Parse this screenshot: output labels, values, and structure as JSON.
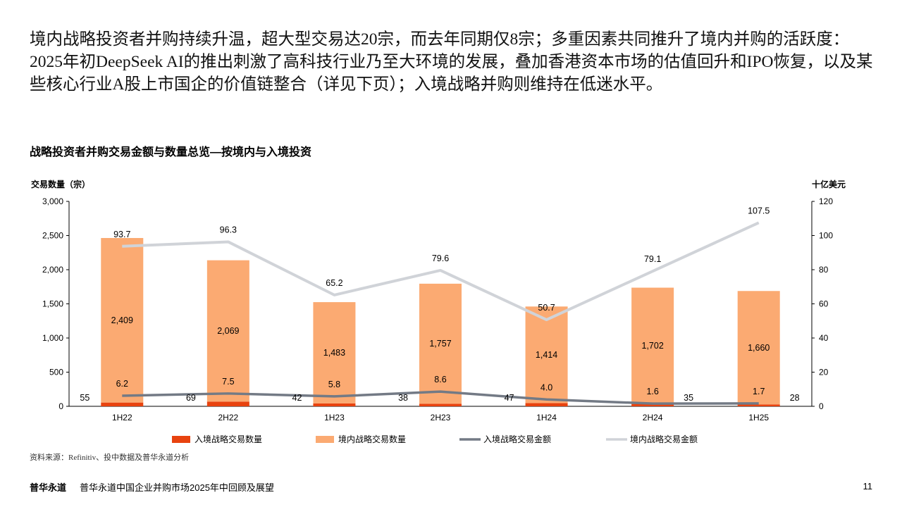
{
  "headline": "境内战略投资者并购持续升温，超大型交易达20宗，而去年同期仅8宗；多重因素共同推升了境内并购的活跃度：2025年初DeepSeek AI的推出刺激了高科技行业乃至大环境的发展，叠加香港资本市场的估值回升和IPO恢复，以及某些核心行业A股上市国企的价值链整合（详见下页）；入境战略并购则维持在低迷水平。",
  "chart_data": {
    "type": "bar",
    "title": "战略投资者并购交易金额与数量总览—按境内与入境投资",
    "ylabel": "交易数量（宗）",
    "y2label": "十亿美元",
    "ylim": [
      0,
      3000
    ],
    "y2lim": [
      0,
      120
    ],
    "yticks": [
      "3,000",
      "2,500",
      "2,000",
      "1,500",
      "1,000",
      "500",
      "0"
    ],
    "y2ticks": [
      "120",
      "100",
      "80",
      "60",
      "40",
      "20",
      "0"
    ],
    "categories": [
      "1H22",
      "2H22",
      "1H23",
      "2H23",
      "1H24",
      "2H24",
      "1H25"
    ],
    "series": [
      {
        "name": "入境战略交易数量",
        "kind": "bar",
        "axis": "left",
        "color": "#e8430f",
        "values": [
          55,
          69,
          42,
          38,
          47,
          35,
          28
        ],
        "labels": [
          "55",
          "69",
          "42",
          "38",
          "47",
          "35",
          "28"
        ]
      },
      {
        "name": "境内战略交易数量",
        "kind": "bar",
        "axis": "left",
        "color": "#fbaa72",
        "values": [
          2409,
          2069,
          1483,
          1757,
          1414,
          1702,
          1660
        ],
        "labels": [
          "2,409",
          "2,069",
          "1,483",
          "1,757",
          "1,414",
          "1,702",
          "1,660"
        ]
      },
      {
        "name": "入境战略交易金额",
        "kind": "line",
        "axis": "right",
        "color": "#737a85",
        "values": [
          6.2,
          7.5,
          5.8,
          8.6,
          4.0,
          1.6,
          1.7
        ],
        "labels": [
          "6.2",
          "7.5",
          "5.8",
          "8.6",
          "4.0",
          "1.6",
          "1.7"
        ]
      },
      {
        "name": "境内战略交易金额",
        "kind": "line",
        "axis": "right",
        "color": "#d0d3d8",
        "values": [
          93.7,
          96.3,
          65.2,
          79.6,
          50.7,
          79.1,
          107.5
        ],
        "labels": [
          "93.7",
          "96.3",
          "65.2",
          "79.6",
          "50.7",
          "79.1",
          "107.5"
        ]
      }
    ],
    "legend": "bottom",
    "grid": false
  },
  "source": "资料来源：Refinitiv、投中数据及普华永道分析",
  "footer": {
    "brand": "普华永道",
    "report": "普华永道中国企业并购市场2025年中回顾及展望",
    "page": "11"
  }
}
